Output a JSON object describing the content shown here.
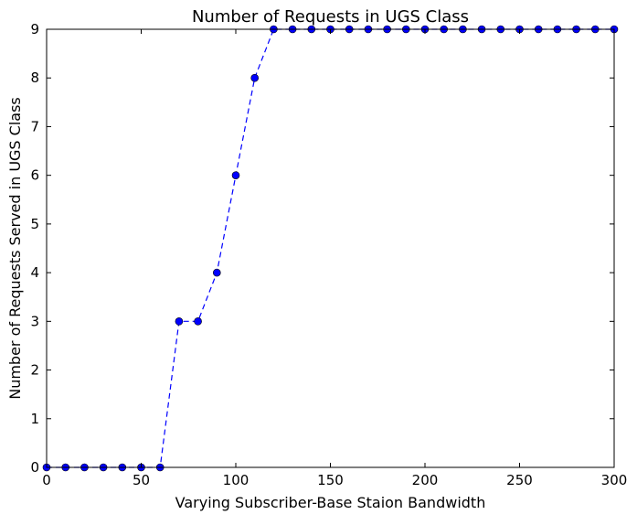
{
  "chart_data": {
    "type": "line",
    "title": "Number of Requests in UGS Class",
    "xlabel": "Varying Subscriber-Base Staion Bandwidth",
    "ylabel": "Number of Requests Served in UGS Class",
    "xlim": [
      0,
      300
    ],
    "ylim": [
      0,
      9
    ],
    "xticks": [
      "0",
      "50",
      "100",
      "150",
      "200",
      "250",
      "300"
    ],
    "yticks": [
      "0",
      "1",
      "2",
      "3",
      "4",
      "5",
      "6",
      "7",
      "8",
      "9"
    ],
    "grid": false,
    "series": [
      {
        "x": [
          0,
          10,
          20,
          30,
          40,
          50,
          60,
          70,
          80,
          90,
          100,
          110,
          120,
          130,
          140,
          150,
          160,
          170,
          180,
          190,
          200,
          210,
          220,
          230,
          240,
          250,
          260,
          270,
          280,
          290,
          300
        ],
        "y": [
          0,
          0,
          0,
          0,
          0,
          0,
          0,
          3,
          3,
          4,
          6,
          8,
          9,
          9,
          9,
          9,
          9,
          9,
          9,
          9,
          9,
          9,
          9,
          9,
          9,
          9,
          9,
          9,
          9,
          9,
          9
        ],
        "color": "#0000ff",
        "line_style": "dashed",
        "marker": "circle"
      }
    ]
  }
}
